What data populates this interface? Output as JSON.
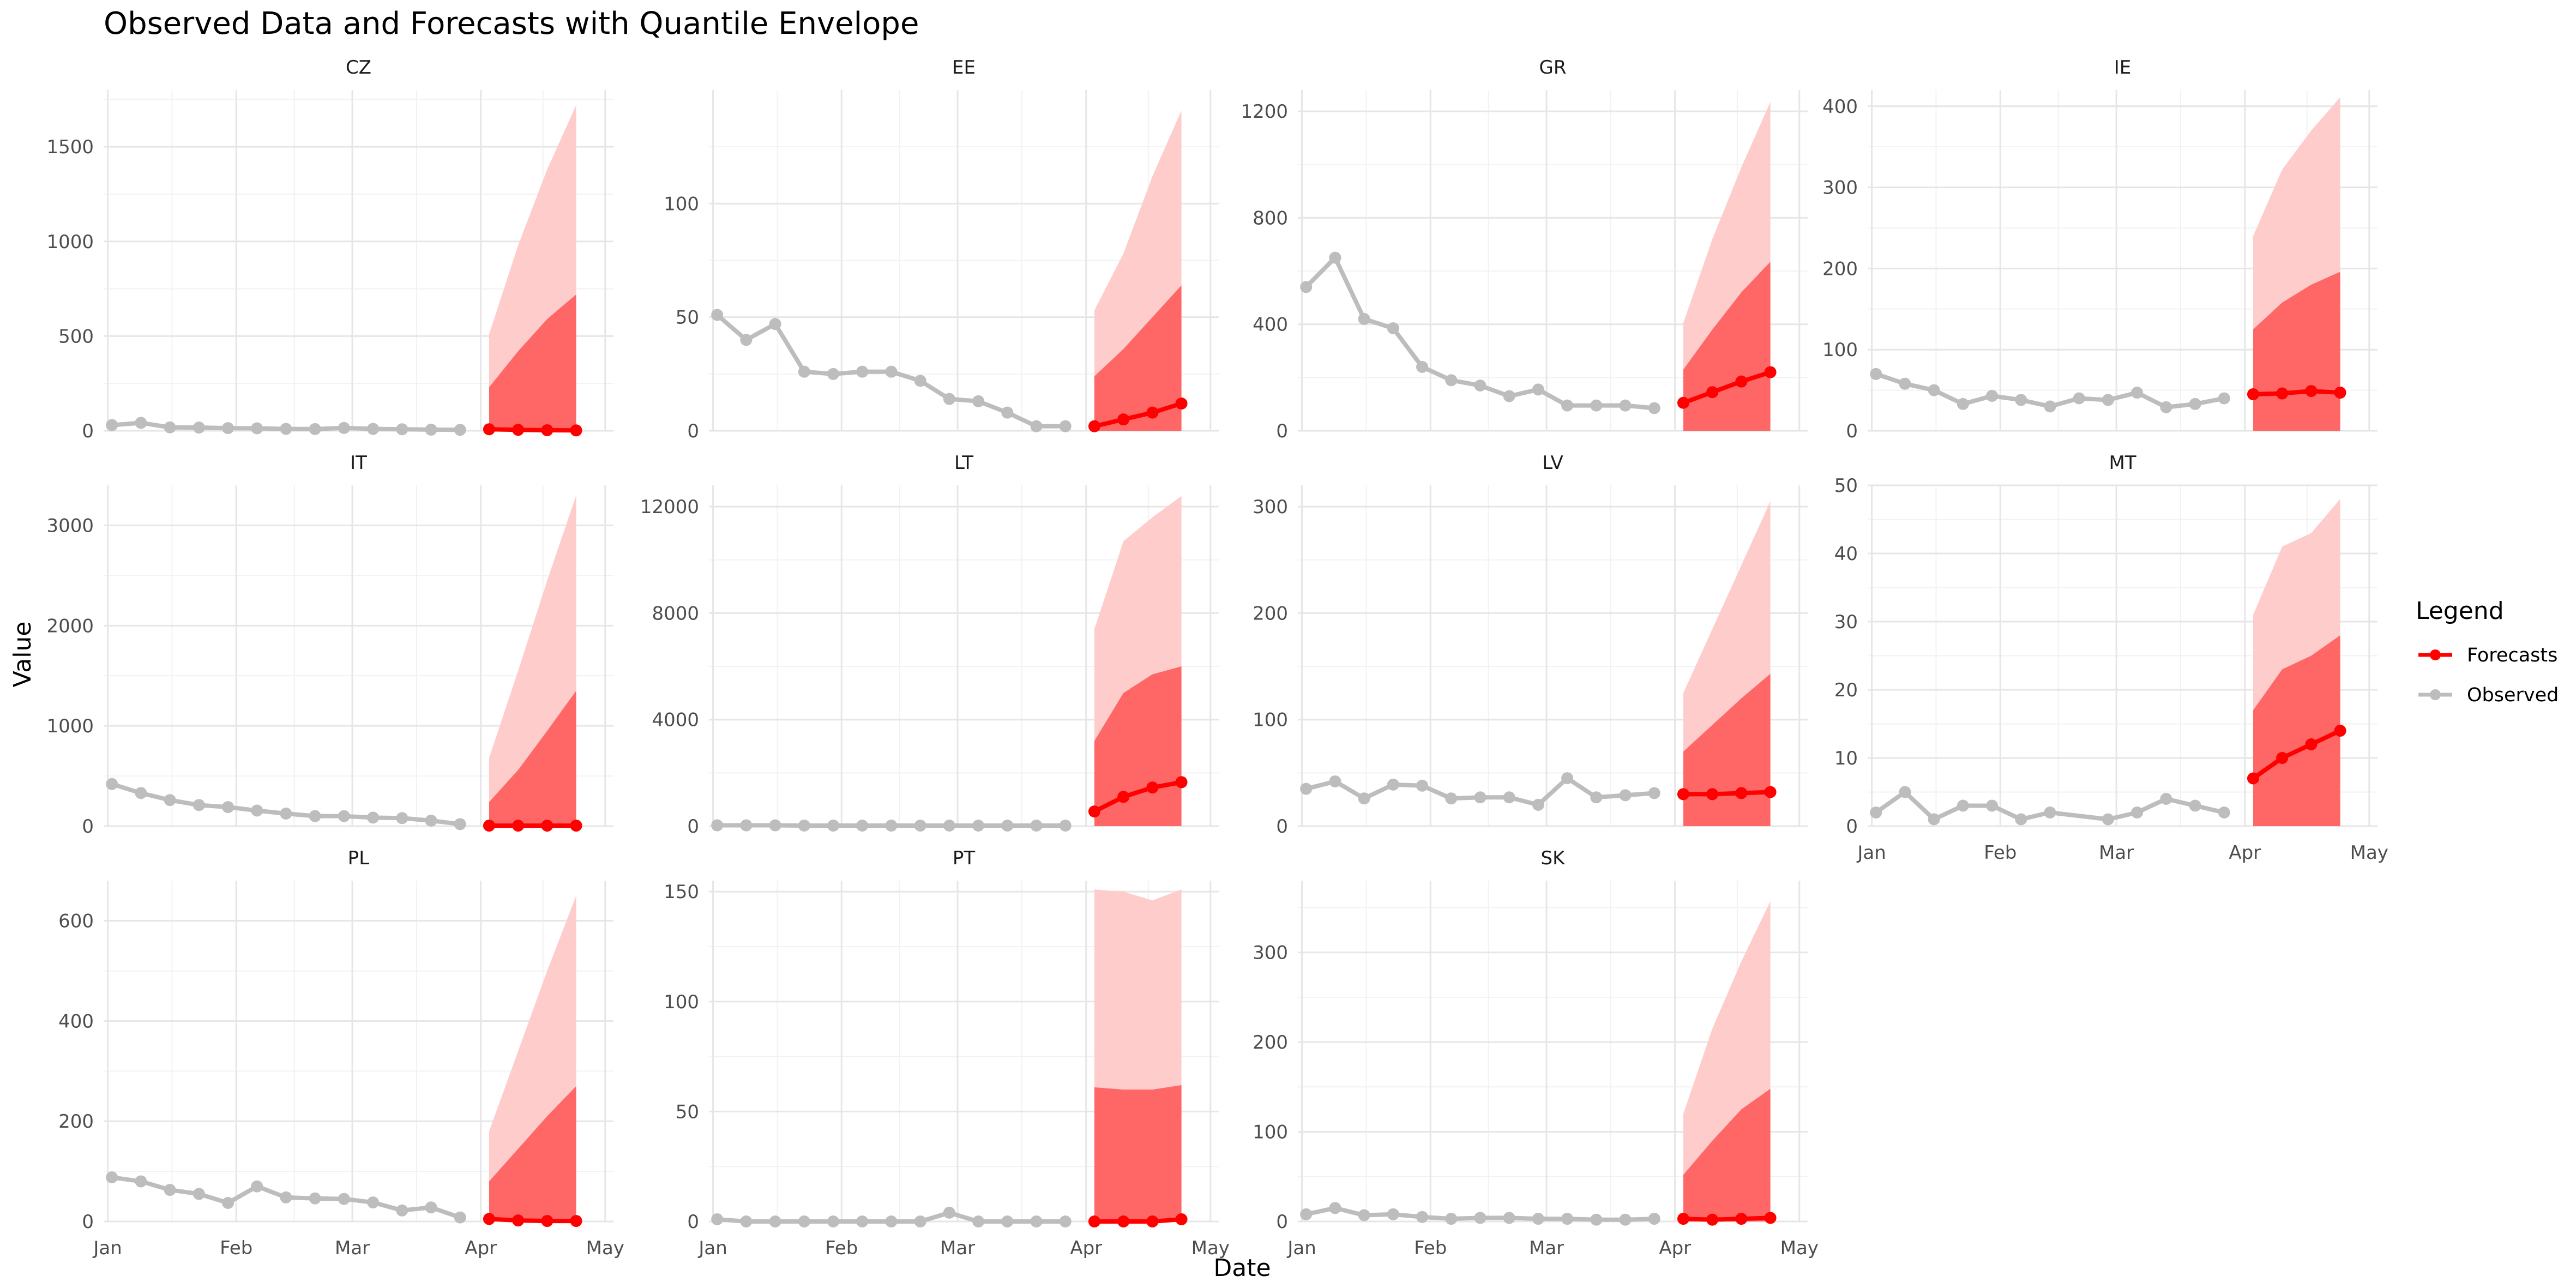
{
  "chart_data": {
    "type": "line",
    "title": "Observed Data and Forecasts with Quantile Envelope",
    "xlabel": "Date",
    "ylabel": "Value",
    "x_tick_labels": [
      "Jan",
      "Feb",
      "Mar",
      "Apr",
      "May"
    ],
    "x_tick_dates": [
      "2022-01-01",
      "2022-02-01",
      "2022-03-01",
      "2022-04-01",
      "2022-05-01"
    ],
    "xlim": [
      "2021-12-31",
      "2022-05-03"
    ],
    "observed_dates": [
      "2022-01-02",
      "2022-01-09",
      "2022-01-16",
      "2022-01-23",
      "2022-01-30",
      "2022-02-06",
      "2022-02-13",
      "2022-02-20",
      "2022-02-27",
      "2022-03-06",
      "2022-03-13",
      "2022-03-20",
      "2022-03-27"
    ],
    "forecast_dates": [
      "2022-04-03",
      "2022-04-10",
      "2022-04-17",
      "2022-04-24"
    ],
    "grid": true,
    "legend": {
      "title": "Legend",
      "position": "right",
      "entries": [
        {
          "label": "Forecasts",
          "color": "#ff0000"
        },
        {
          "label": "Observed",
          "color": "#bdbdbd"
        }
      ]
    },
    "colors": {
      "observed": "#bdbdbd",
      "forecast": "#ff0000",
      "band_outer": "#ffcccc",
      "band_inner": "#ff6666"
    },
    "panels": [
      {
        "name": "CZ",
        "ylim": [
          0,
          1800
        ],
        "yticks": [
          0,
          500,
          1000,
          1500
        ],
        "observed": [
          30,
          42,
          18,
          17,
          14,
          13,
          10,
          9,
          15,
          10,
          8,
          6,
          5
        ],
        "forecast": [
          8,
          5,
          3,
          2
        ],
        "band_inner": [
          [
            0,
            230
          ],
          [
            0,
            420
          ],
          [
            0,
            590
          ],
          [
            0,
            720
          ]
        ],
        "band_outer": [
          [
            0,
            510
          ],
          [
            0,
            980
          ],
          [
            0,
            1380
          ],
          [
            0,
            1720
          ]
        ]
      },
      {
        "name": "EE",
        "ylim": [
          0,
          150
        ],
        "yticks": [
          0,
          50,
          100
        ],
        "observed": [
          51,
          40,
          47,
          26,
          25,
          26,
          26,
          22,
          14,
          13,
          8,
          2,
          2
        ],
        "forecast": [
          2,
          5,
          8,
          12
        ],
        "band_inner": [
          [
            0,
            24
          ],
          [
            0,
            36
          ],
          [
            0,
            50
          ],
          [
            0,
            64
          ]
        ],
        "band_outer": [
          [
            0,
            53
          ],
          [
            0,
            78
          ],
          [
            0,
            112
          ],
          [
            0,
            141
          ]
        ]
      },
      {
        "name": "GR",
        "ylim": [
          0,
          1280
        ],
        "yticks": [
          0,
          400,
          800,
          1200
        ],
        "observed": [
          540,
          650,
          420,
          385,
          240,
          190,
          170,
          130,
          155,
          95,
          95,
          95,
          85
        ],
        "forecast": [
          105,
          145,
          185,
          220
        ],
        "band_inner": [
          [
            0,
            230
          ],
          [
            0,
            380
          ],
          [
            0,
            520
          ],
          [
            0,
            635
          ]
        ],
        "band_outer": [
          [
            0,
            405
          ],
          [
            0,
            720
          ],
          [
            0,
            990
          ],
          [
            0,
            1235
          ]
        ]
      },
      {
        "name": "IE",
        "ylim": [
          0,
          420
        ],
        "yticks": [
          0,
          100,
          200,
          300,
          400
        ],
        "observed": [
          70,
          58,
          50,
          33,
          43,
          38,
          30,
          40,
          38,
          47,
          29,
          33,
          40
        ],
        "forecast": [
          45,
          46,
          49,
          47
        ],
        "band_inner": [
          [
            0,
            125
          ],
          [
            0,
            158
          ],
          [
            0,
            180
          ],
          [
            0,
            196
          ]
        ],
        "band_outer": [
          [
            0,
            240
          ],
          [
            0,
            322
          ],
          [
            0,
            370
          ],
          [
            0,
            411
          ]
        ]
      },
      {
        "name": "IT",
        "ylim": [
          0,
          3400
        ],
        "yticks": [
          0,
          1000,
          2000,
          3000
        ],
        "observed": [
          420,
          330,
          260,
          210,
          190,
          155,
          125,
          100,
          100,
          85,
          80,
          55,
          20
        ],
        "forecast": [
          5,
          5,
          5,
          5
        ],
        "band_inner": [
          [
            0,
            240
          ],
          [
            0,
            560
          ],
          [
            0,
            950
          ],
          [
            0,
            1350
          ]
        ],
        "band_outer": [
          [
            0,
            680
          ],
          [
            0,
            1550
          ],
          [
            0,
            2450
          ],
          [
            0,
            3300
          ]
        ]
      },
      {
        "name": "LT",
        "ylim": [
          0,
          12800
        ],
        "yticks": [
          0,
          4000,
          8000,
          12000
        ],
        "observed": [
          30,
          30,
          30,
          20,
          20,
          20,
          20,
          20,
          20,
          20,
          20,
          20,
          20
        ],
        "forecast": [
          550,
          1100,
          1450,
          1650
        ],
        "band_inner": [
          [
            0,
            3200
          ],
          [
            0,
            5000
          ],
          [
            0,
            5700
          ],
          [
            0,
            6000
          ]
        ],
        "band_outer": [
          [
            0,
            7400
          ],
          [
            0,
            10700
          ],
          [
            0,
            11600
          ],
          [
            0,
            12400
          ]
        ]
      },
      {
        "name": "LV",
        "ylim": [
          0,
          320
        ],
        "yticks": [
          0,
          100,
          200,
          300
        ],
        "observed": [
          35,
          42,
          26,
          39,
          38,
          26,
          27,
          27,
          20,
          45,
          27,
          29,
          31
        ],
        "forecast": [
          30,
          30,
          31,
          32
        ],
        "band_inner": [
          [
            0,
            70
          ],
          [
            0,
            95
          ],
          [
            0,
            120
          ],
          [
            0,
            143
          ]
        ],
        "band_outer": [
          [
            0,
            125
          ],
          [
            0,
            185
          ],
          [
            0,
            245
          ],
          [
            0,
            305
          ]
        ]
      },
      {
        "name": "MT",
        "ylim": [
          0,
          50
        ],
        "yticks": [
          0,
          10,
          20,
          30,
          40,
          50
        ],
        "observed_dates": [
          "2022-01-02",
          "2022-01-09",
          "2022-01-16",
          "2022-01-23",
          "2022-01-30",
          "2022-02-06",
          "2022-02-13",
          "2022-02-27",
          "2022-03-06",
          "2022-03-13",
          "2022-03-20",
          "2022-03-27"
        ],
        "observed": [
          2,
          5,
          1,
          3,
          3,
          1,
          2,
          1,
          2,
          4,
          3,
          2
        ],
        "forecast": [
          7,
          10,
          12,
          14
        ],
        "band_inner": [
          [
            0,
            17
          ],
          [
            0,
            23
          ],
          [
            0,
            25
          ],
          [
            0,
            28
          ]
        ],
        "band_outer": [
          [
            0,
            31
          ],
          [
            0,
            41
          ],
          [
            0,
            43
          ],
          [
            0,
            48
          ]
        ]
      },
      {
        "name": "PL",
        "ylim": [
          0,
          680
        ],
        "yticks": [
          0,
          200,
          400,
          600
        ],
        "observed": [
          88,
          80,
          63,
          55,
          37,
          70,
          48,
          46,
          45,
          38,
          22,
          28,
          8
        ],
        "forecast": [
          5,
          2,
          1,
          1
        ],
        "band_inner": [
          [
            0,
            80
          ],
          [
            0,
            145
          ],
          [
            0,
            210
          ],
          [
            0,
            270
          ]
        ],
        "band_outer": [
          [
            0,
            180
          ],
          [
            0,
            340
          ],
          [
            0,
            500
          ],
          [
            0,
            650
          ]
        ]
      },
      {
        "name": "PT",
        "ylim": [
          0,
          155
        ],
        "yticks": [
          0,
          50,
          100,
          150
        ],
        "observed": [
          1,
          0,
          0,
          0,
          0,
          0,
          0,
          0,
          4,
          0,
          0,
          0,
          0
        ],
        "forecast": [
          0,
          0,
          0,
          1
        ],
        "band_inner": [
          [
            0,
            61
          ],
          [
            0,
            60
          ],
          [
            0,
            60
          ],
          [
            0,
            62
          ]
        ],
        "band_outer": [
          [
            0,
            151
          ],
          [
            0,
            150
          ],
          [
            0,
            146
          ],
          [
            0,
            151
          ]
        ]
      },
      {
        "name": "SK",
        "ylim": [
          0,
          380
        ],
        "yticks": [
          0,
          100,
          200,
          300
        ],
        "observed": [
          8,
          15,
          7,
          8,
          5,
          3,
          4,
          4,
          3,
          3,
          2,
          2,
          3
        ],
        "forecast": [
          3,
          2,
          3,
          4
        ],
        "band_inner": [
          [
            0,
            52
          ],
          [
            0,
            90
          ],
          [
            0,
            125
          ],
          [
            0,
            148
          ]
        ],
        "band_outer": [
          [
            0,
            120
          ],
          [
            0,
            215
          ],
          [
            0,
            290
          ],
          [
            0,
            357
          ]
        ]
      }
    ]
  }
}
